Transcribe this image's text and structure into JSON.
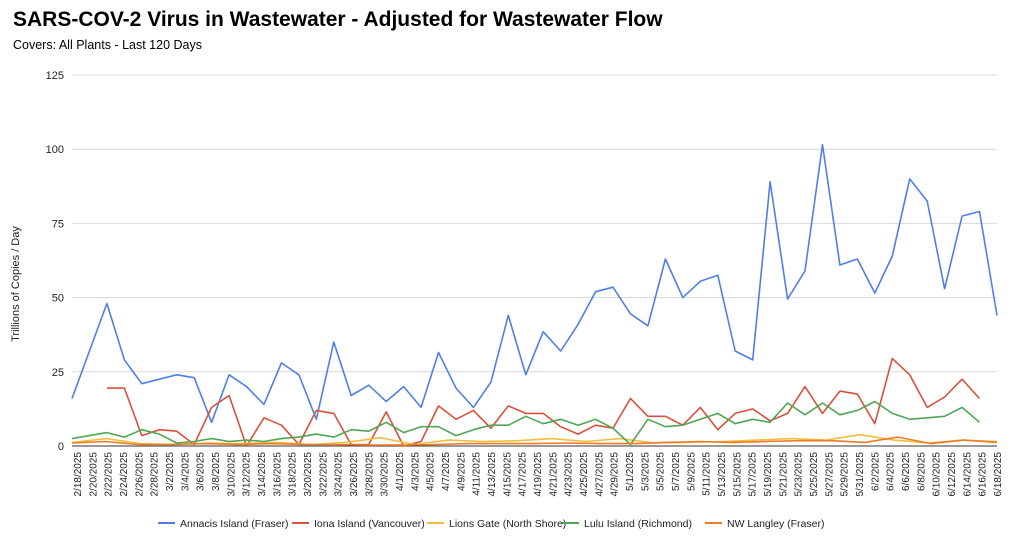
{
  "chart_data": {
    "type": "line",
    "title": "SARS-COV-2 Virus in Wastewater - Adjusted for Wastewater Flow",
    "subtitle": "Covers: All Plants - Last 120 Days",
    "xlabel": "",
    "ylabel": "Trillions of Copies / Day",
    "ylim": [
      0,
      125
    ],
    "yticks": [
      0,
      25,
      50,
      75,
      100,
      125
    ],
    "grid": true,
    "legend_position": "bottom",
    "x": [
      "2/18/2025",
      "2/20/2025",
      "2/22/2025",
      "2/24/2025",
      "2/26/2025",
      "2/28/2025",
      "3/2/2025",
      "3/4/2025",
      "3/6/2025",
      "3/8/2025",
      "3/10/2025",
      "3/12/2025",
      "3/14/2025",
      "3/16/2025",
      "3/18/2025",
      "3/20/2025",
      "3/22/2025",
      "3/24/2025",
      "3/26/2025",
      "3/28/2025",
      "3/30/2025",
      "4/1/2025",
      "4/3/2025",
      "4/5/2025",
      "4/7/2025",
      "4/9/2025",
      "4/11/2025",
      "4/13/2025",
      "4/15/2025",
      "4/17/2025",
      "4/19/2025",
      "4/21/2025",
      "4/23/2025",
      "4/25/2025",
      "4/27/2025",
      "4/29/2025",
      "5/1/2025",
      "5/3/2025",
      "5/5/2025",
      "5/7/2025",
      "5/9/2025",
      "5/11/2025",
      "5/13/2025",
      "5/15/2025",
      "5/17/2025",
      "5/19/2025",
      "5/21/2025",
      "5/23/2025",
      "5/25/2025",
      "5/27/2025",
      "5/29/2025",
      "5/31/2025",
      "6/2/2025",
      "6/4/2025",
      "6/6/2025",
      "6/8/2025",
      "6/10/2025",
      "6/12/2025",
      "6/14/2025",
      "6/16/2025",
      "6/18/2025"
    ],
    "series": [
      {
        "name": "Annacis Island (Fraser)",
        "color": "#4f7fe6",
        "points": [
          [
            0,
            16
          ],
          [
            2,
            48
          ],
          [
            3,
            29
          ],
          [
            4,
            21
          ],
          [
            5,
            22.5
          ],
          [
            6,
            24
          ],
          [
            7,
            23
          ],
          [
            8,
            8
          ],
          [
            9,
            24
          ],
          [
            10,
            20
          ],
          [
            11,
            14
          ],
          [
            12,
            28
          ],
          [
            13,
            24
          ],
          [
            14,
            9
          ],
          [
            15,
            35
          ],
          [
            16,
            17
          ],
          [
            17,
            20.5
          ],
          [
            18,
            15
          ],
          [
            19,
            20
          ],
          [
            20,
            13
          ],
          [
            21,
            31.5
          ],
          [
            22,
            19.5
          ],
          [
            23,
            13
          ],
          [
            24,
            21.5
          ],
          [
            25,
            44
          ],
          [
            26,
            24
          ],
          [
            27,
            38.5
          ],
          [
            28,
            32
          ],
          [
            29,
            41
          ],
          [
            30,
            52
          ],
          [
            31,
            53.5
          ],
          [
            32,
            44.5
          ],
          [
            33,
            40.5
          ],
          [
            34,
            63
          ],
          [
            35,
            50
          ],
          [
            36,
            55.5
          ],
          [
            37,
            57.5
          ],
          [
            38,
            32
          ],
          [
            39,
            29
          ],
          [
            40,
            89
          ],
          [
            41,
            49.5
          ],
          [
            42,
            59
          ],
          [
            43,
            101.5
          ],
          [
            44,
            61
          ],
          [
            45,
            63
          ],
          [
            46,
            51.5
          ],
          [
            47,
            64
          ],
          [
            48,
            90
          ],
          [
            49,
            82.5
          ],
          [
            50,
            53
          ],
          [
            51,
            77.5
          ],
          [
            52,
            79
          ],
          [
            53,
            44
          ]
        ]
      },
      {
        "name": "Iona Island (Vancouver)",
        "color": "#d9513a",
        "points": [
          [
            2,
            19.5
          ],
          [
            3,
            19.5
          ],
          [
            4,
            3.5
          ],
          [
            5,
            5.5
          ],
          [
            6,
            5
          ],
          [
            7,
            0.5
          ],
          [
            8,
            13
          ],
          [
            9,
            17
          ],
          [
            10,
            0
          ],
          [
            11,
            9.5
          ],
          [
            12,
            7
          ],
          [
            13,
            0.5
          ],
          [
            14,
            12
          ],
          [
            15,
            11
          ],
          [
            16,
            0.5
          ],
          [
            17,
            0.5
          ],
          [
            18,
            11.5
          ],
          [
            19,
            0
          ],
          [
            20,
            1.5
          ],
          [
            21,
            13.5
          ],
          [
            22,
            9
          ],
          [
            23,
            12
          ],
          [
            24,
            6
          ],
          [
            25,
            13.5
          ],
          [
            26,
            11
          ],
          [
            27,
            11
          ],
          [
            28,
            6.5
          ],
          [
            29,
            4
          ],
          [
            30,
            7
          ],
          [
            31,
            6
          ],
          [
            32,
            16
          ],
          [
            33,
            10
          ],
          [
            34,
            10
          ],
          [
            35,
            7
          ],
          [
            36,
            13
          ],
          [
            37,
            5.5
          ],
          [
            38,
            11
          ],
          [
            39,
            12.5
          ],
          [
            40,
            8.5
          ],
          [
            41,
            11
          ],
          [
            42,
            20
          ],
          [
            43,
            11
          ],
          [
            44,
            18.5
          ],
          [
            45,
            17.5
          ],
          [
            46,
            7.5
          ],
          [
            47,
            29.5
          ],
          [
            48,
            24
          ],
          [
            49,
            13
          ],
          [
            50,
            16.5
          ],
          [
            51,
            22.5
          ],
          [
            52,
            16
          ]
        ]
      },
      {
        "name": "Lions Gate (North Shore)",
        "color": "#f0bf3f",
        "points": [
          [
            0,
            1.2
          ],
          [
            2,
            2.5
          ],
          [
            4,
            0.8
          ],
          [
            6,
            0.5
          ],
          [
            8,
            1
          ],
          [
            10,
            0.8
          ],
          [
            12,
            1.2
          ],
          [
            14,
            0.5
          ],
          [
            16,
            1.2
          ],
          [
            18,
            2.8
          ],
          [
            20,
            0.5
          ],
          [
            22,
            2
          ],
          [
            24,
            1.5
          ],
          [
            26,
            1.8
          ],
          [
            28,
            2.5
          ],
          [
            30,
            1.5
          ],
          [
            32,
            2.5
          ],
          [
            34,
            1
          ],
          [
            36,
            1.2
          ],
          [
            38,
            1.5
          ],
          [
            40,
            2
          ],
          [
            42,
            2.5
          ],
          [
            44,
            2
          ],
          [
            46,
            3.8
          ],
          [
            48,
            2
          ],
          [
            50,
            1
          ],
          [
            52,
            2
          ],
          [
            54,
            1.5
          ]
        ]
      },
      {
        "name": "Lulu Island (Richmond)",
        "color": "#4ea754",
        "points": [
          [
            0,
            2.5
          ],
          [
            2,
            4.5
          ],
          [
            3,
            3
          ],
          [
            4,
            5.5
          ],
          [
            5,
            4
          ],
          [
            6,
            1
          ],
          [
            7,
            1.5
          ],
          [
            8,
            2.5
          ],
          [
            9,
            1.5
          ],
          [
            10,
            2
          ],
          [
            11,
            1.5
          ],
          [
            12,
            2.5
          ],
          [
            13,
            3
          ],
          [
            14,
            4
          ],
          [
            15,
            3
          ],
          [
            16,
            5.5
          ],
          [
            17,
            5
          ],
          [
            18,
            8
          ],
          [
            19,
            4.5
          ],
          [
            20,
            6.5
          ],
          [
            21,
            6.5
          ],
          [
            22,
            3.5
          ],
          [
            23,
            5.5
          ],
          [
            24,
            7
          ],
          [
            25,
            7
          ],
          [
            26,
            10
          ],
          [
            27,
            7.5
          ],
          [
            28,
            9
          ],
          [
            29,
            7
          ],
          [
            30,
            9
          ],
          [
            31,
            6
          ],
          [
            32,
            0.5
          ],
          [
            33,
            9
          ],
          [
            34,
            6.5
          ],
          [
            35,
            7
          ],
          [
            36,
            9
          ],
          [
            37,
            11
          ],
          [
            38,
            7.5
          ],
          [
            39,
            9
          ],
          [
            40,
            8
          ],
          [
            41,
            14.5
          ],
          [
            42,
            10.5
          ],
          [
            43,
            14.5
          ],
          [
            44,
            10.5
          ],
          [
            45,
            12
          ],
          [
            46,
            15
          ],
          [
            47,
            11
          ],
          [
            48,
            9
          ],
          [
            49,
            9.5
          ],
          [
            50,
            10
          ],
          [
            51,
            13
          ],
          [
            52,
            8
          ]
        ]
      },
      {
        "name": "NW Langley (Fraser)",
        "color": "#f07a26",
        "points": [
          [
            0,
            1
          ],
          [
            2,
            1.5
          ],
          [
            4,
            0.5
          ],
          [
            6,
            0.5
          ],
          [
            8,
            0.8
          ],
          [
            10,
            0.5
          ],
          [
            12,
            0.8
          ],
          [
            14,
            0.5
          ],
          [
            16,
            0.5
          ],
          [
            18,
            0.3
          ],
          [
            20,
            0.3
          ],
          [
            22,
            0.5
          ],
          [
            24,
            0.8
          ],
          [
            26,
            0.8
          ],
          [
            28,
            0.8
          ],
          [
            30,
            1
          ],
          [
            32,
            0.8
          ],
          [
            34,
            0.8
          ],
          [
            36,
            1.2
          ],
          [
            38,
            1.5
          ],
          [
            40,
            1.2
          ],
          [
            42,
            1.5
          ],
          [
            44,
            1.8
          ],
          [
            46,
            1.8
          ],
          [
            48,
            1.2
          ],
          [
            50,
            3
          ],
          [
            52,
            0.8
          ],
          [
            54,
            2
          ],
          [
            56,
            1.2
          ]
        ]
      }
    ]
  }
}
